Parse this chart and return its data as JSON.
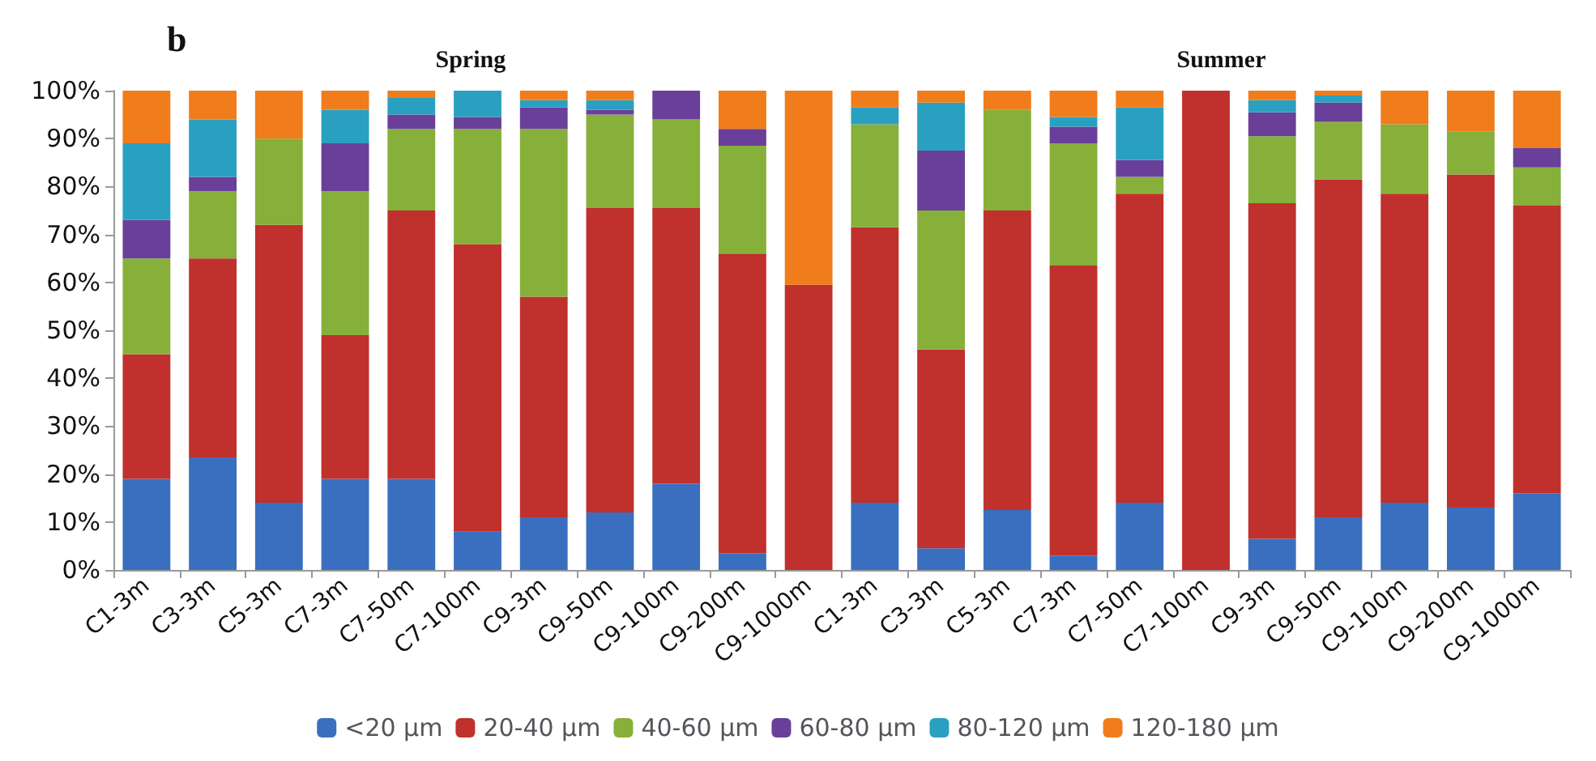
{
  "chart_data": {
    "type": "bar",
    "stacked": true,
    "title": "b",
    "annotations": [
      "Spring",
      "Summer"
    ],
    "categories": [
      "C1-3m",
      "C3-3m",
      "C5-3m",
      "C7-3m",
      "C7-50m",
      "C7-100m",
      "C9-3m",
      "C9-50m",
      "C9-100m",
      "C9-200m",
      "C9-1000m",
      "C1-3m",
      "C3-3m",
      "C5-3m",
      "C7-3m",
      "C7-50m",
      "C7-100m",
      "C9-3m",
      "C9-50m",
      "C9-100m",
      "C9-200m",
      "C9-1000m"
    ],
    "series": [
      {
        "name": "<20 µm",
        "color": "#3a6fc0",
        "values": [
          19,
          23.5,
          14,
          19,
          19,
          8,
          11,
          12,
          18,
          3.5,
          0,
          14,
          4.5,
          12.5,
          3,
          14,
          0,
          6.5,
          11,
          14,
          13,
          16
        ]
      },
      {
        "name": "20-40 µm",
        "color": "#c0302c",
        "values": [
          26,
          41.5,
          58,
          30,
          56,
          60,
          46,
          63.5,
          57.5,
          62.5,
          59.5,
          57.5,
          41.5,
          62.5,
          60.5,
          64.5,
          100,
          70,
          70.5,
          64.5,
          69.5,
          60
        ]
      },
      {
        "name": "40-60 µm",
        "color": "#86b03a",
        "values": [
          20,
          14,
          18,
          30,
          17,
          24,
          35,
          19.5,
          18.5,
          22.5,
          0,
          21.5,
          29,
          21,
          25.5,
          3.5,
          0,
          14,
          12,
          14.5,
          9,
          8
        ]
      },
      {
        "name": "60-80 µm",
        "color": "#6a3f9a",
        "values": [
          8,
          3,
          0,
          10,
          3,
          2.5,
          4.5,
          1,
          6,
          3.5,
          0,
          0,
          12.5,
          0,
          3.5,
          3.5,
          0,
          5,
          4,
          0,
          0,
          4
        ]
      },
      {
        "name": "80-120 µm",
        "color": "#2aa0c0",
        "values": [
          16,
          12,
          0,
          7,
          3.5,
          5.5,
          1.5,
          2,
          0,
          0,
          0,
          3.5,
          10,
          0,
          2,
          11,
          0,
          2.5,
          1.5,
          0,
          0,
          0
        ]
      },
      {
        "name": "120-180 µm",
        "color": "#f07c1c",
        "values": [
          11,
          6,
          10,
          4,
          1.5,
          0,
          2,
          2,
          0,
          8,
          40.5,
          3.5,
          2.5,
          4,
          5.5,
          3.5,
          0,
          2,
          1,
          7,
          8.5,
          12
        ]
      }
    ],
    "ylim": [
      0,
      100
    ],
    "yticks": [
      {
        "value": 0,
        "label": "0%"
      },
      {
        "value": 10,
        "label": "10%"
      },
      {
        "value": 20,
        "label": "20%"
      },
      {
        "value": 30,
        "label": "30%"
      },
      {
        "value": 40,
        "label": "40%"
      },
      {
        "value": 50,
        "label": "50%"
      },
      {
        "value": 60,
        "label": "60%"
      },
      {
        "value": 70,
        "label": "70%"
      },
      {
        "value": 80,
        "label": "80%"
      },
      {
        "value": 90,
        "label": "90%"
      },
      {
        "value": 100,
        "label": "100%"
      }
    ],
    "grid": false,
    "legend": "bottom"
  }
}
